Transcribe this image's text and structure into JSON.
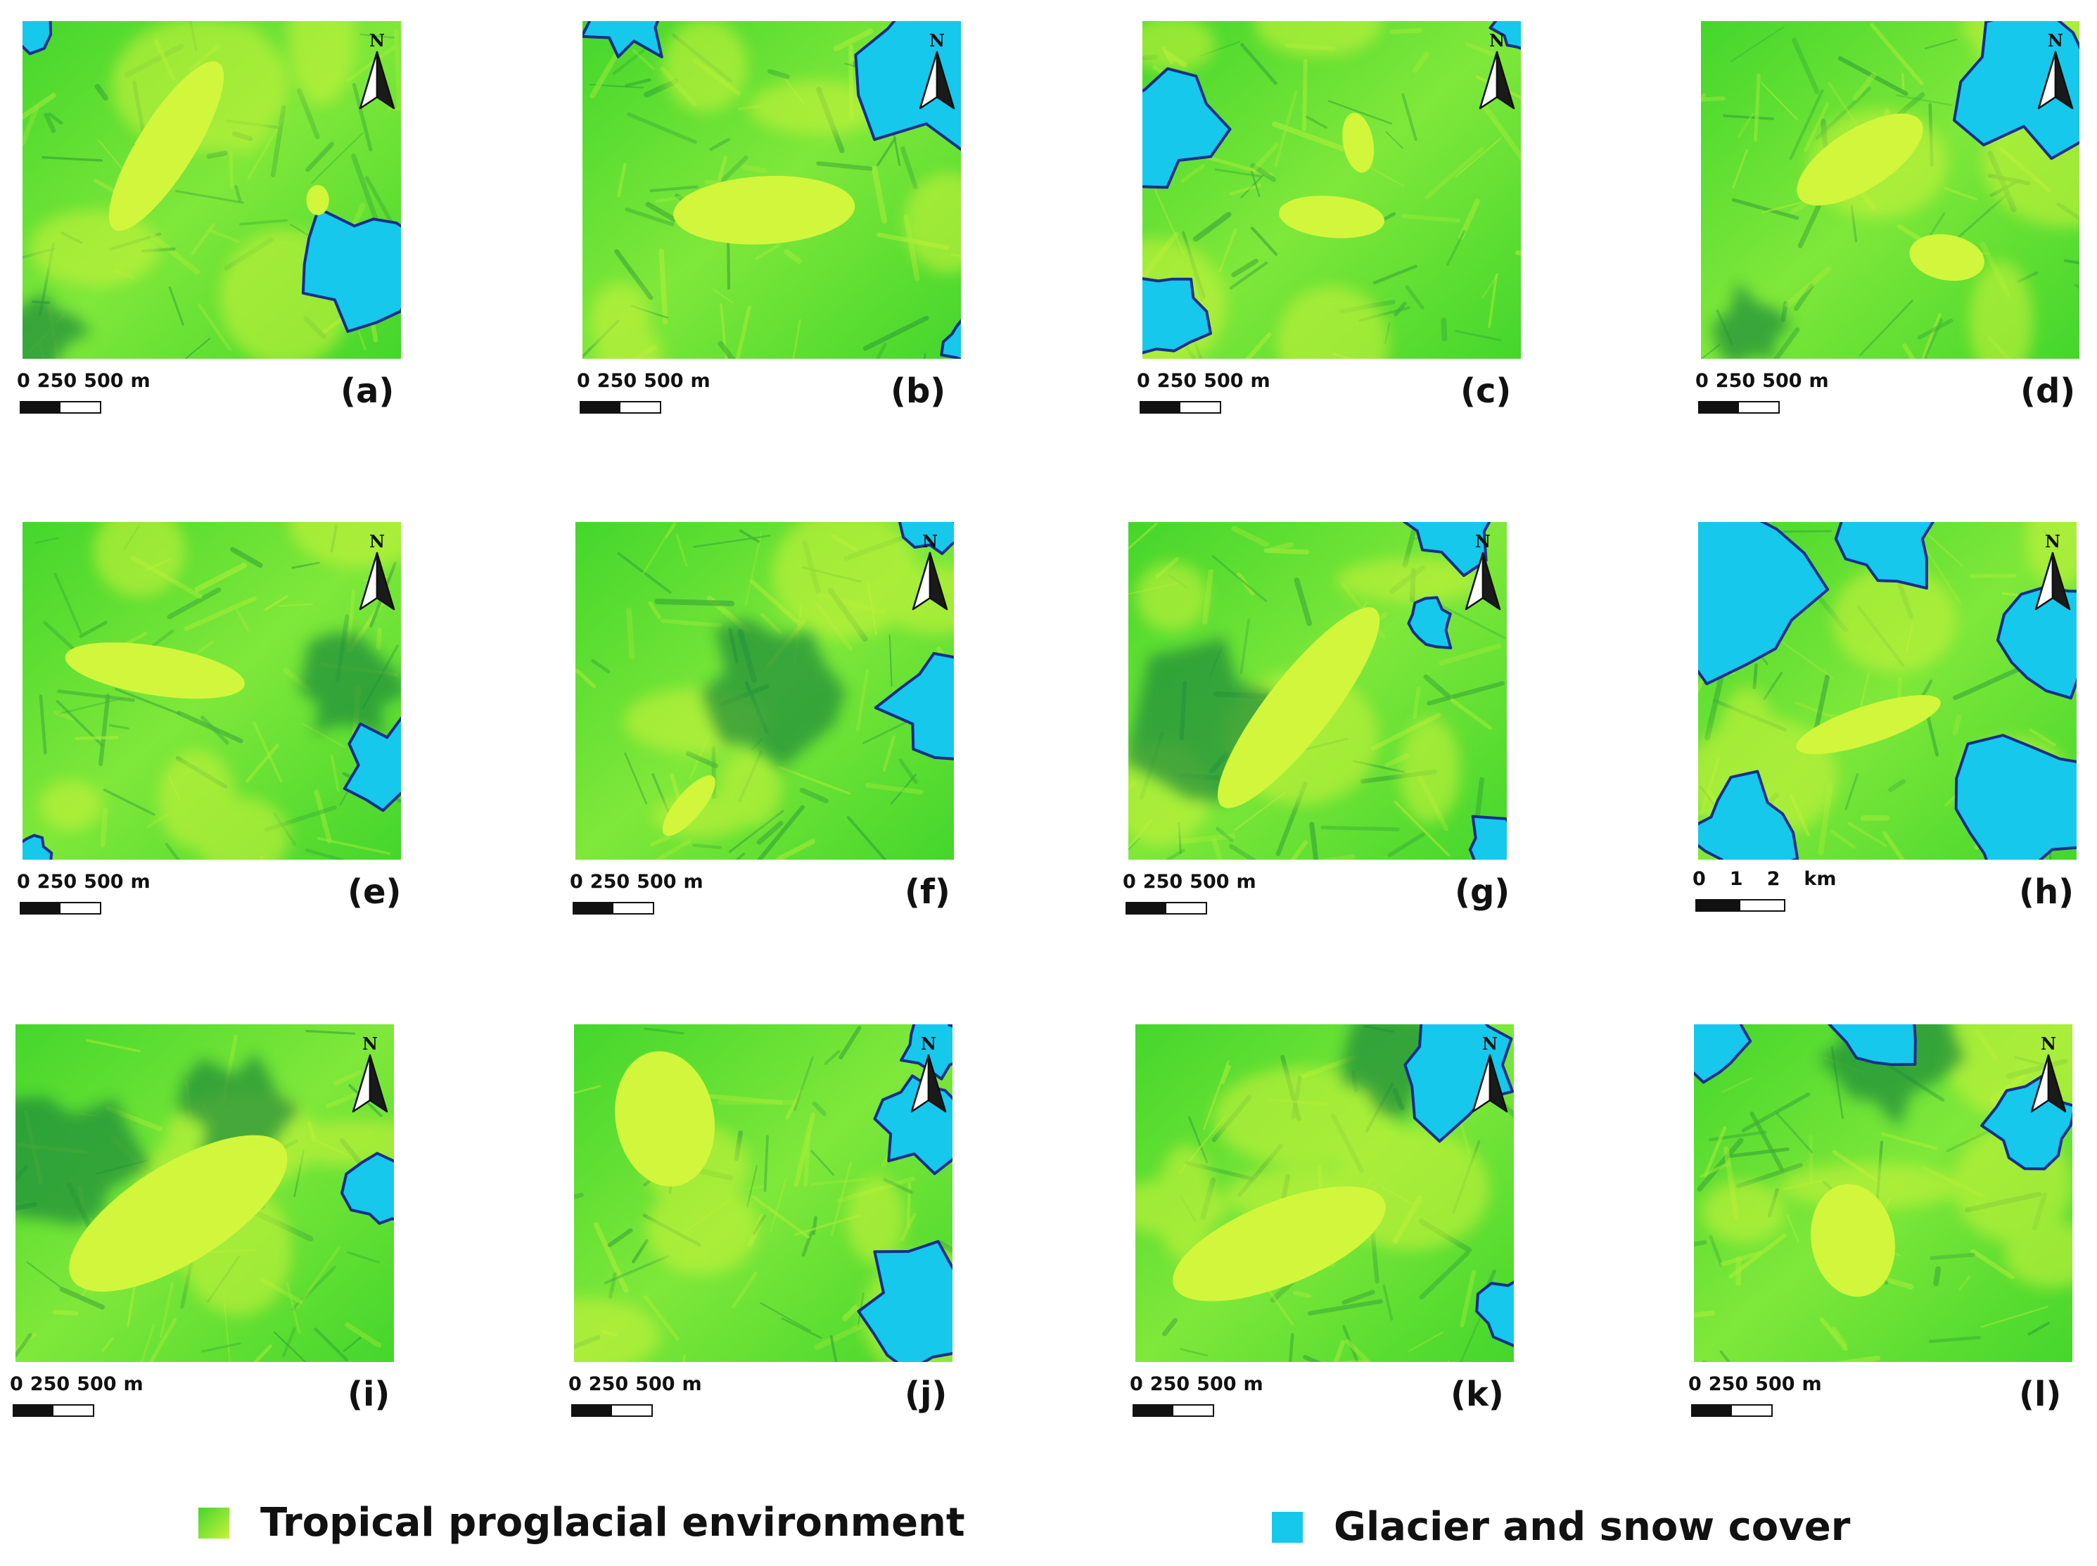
{
  "panels": [
    {
      "id": "a",
      "label": "(a)",
      "scale": {
        "labels": [
          "0",
          "250",
          "500",
          "m"
        ]
      }
    },
    {
      "id": "b",
      "label": "(b)",
      "scale": {
        "labels": [
          "0",
          "250",
          "500",
          "m"
        ]
      }
    },
    {
      "id": "c",
      "label": "(c)",
      "scale": {
        "labels": [
          "0",
          "250",
          "500",
          "m"
        ]
      }
    },
    {
      "id": "d",
      "label": "(d)",
      "scale": {
        "labels": [
          "0",
          "250",
          "500",
          "m"
        ]
      }
    },
    {
      "id": "e",
      "label": "(e)",
      "scale": {
        "labels": [
          "0",
          "250",
          "500",
          "m"
        ]
      }
    },
    {
      "id": "f",
      "label": "(f)",
      "scale": {
        "labels": [
          "0",
          "250",
          "500",
          "m"
        ]
      }
    },
    {
      "id": "g",
      "label": "(g)",
      "scale": {
        "labels": [
          "0",
          "250",
          "500",
          "m"
        ]
      }
    },
    {
      "id": "h",
      "label": "(h)",
      "scale": {
        "labels": [
          "0",
          "1",
          "2",
          "km"
        ]
      }
    },
    {
      "id": "i",
      "label": "(i)",
      "scale": {
        "labels": [
          "0",
          "250",
          "500",
          "m"
        ]
      }
    },
    {
      "id": "j",
      "label": "(j)",
      "scale": {
        "labels": [
          "0",
          "250",
          "500",
          "m"
        ]
      }
    },
    {
      "id": "k",
      "label": "(k)",
      "scale": {
        "labels": [
          "0",
          "250",
          "500",
          "m"
        ]
      }
    },
    {
      "id": "l",
      "label": "(l)",
      "scale": {
        "labels": [
          "0",
          "250",
          "500",
          "m"
        ]
      }
    }
  ],
  "north_letter": "N",
  "legend": {
    "items": [
      {
        "label": "Tropical proglacial environment",
        "swatch": "gradient-green-yellow"
      },
      {
        "label": "Glacier and snow cover",
        "swatch": "cyan"
      }
    ]
  },
  "colors": {
    "green": "#44d62c",
    "yellow_green": "#c6f23a",
    "lake": "#d2f63c",
    "dark_green": "#1f8a3a",
    "cyan": "#16c8ec",
    "navy": "#1a2f8a"
  }
}
